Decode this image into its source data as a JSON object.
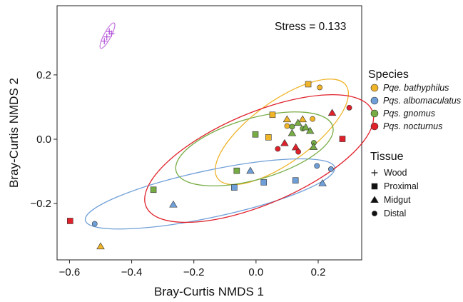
{
  "chart_data": {
    "type": "scatter",
    "xlabel": "Bray-Curtis NMDS 1",
    "ylabel": "Bray-Curtis NMDS 2",
    "annotation": "Stress = 0.133",
    "xlim": [
      -0.64,
      0.34
    ],
    "ylim": [
      -0.375,
      0.415
    ],
    "xticks": [
      -0.6,
      -0.4,
      -0.2,
      0.0,
      0.2
    ],
    "xtick_labels": [
      "−0.6",
      "−0.4",
      "−0.2",
      "0.0",
      "0.2"
    ],
    "yticks": [
      -0.2,
      0.0,
      0.2
    ],
    "ytick_labels": [
      "−0.2",
      "0.0",
      "0.2"
    ],
    "grid": false,
    "legend_position": "right",
    "species_legend_title": "Species",
    "tissue_legend_title": "Tissue",
    "species": [
      {
        "name": "Pqe. bathyphilus",
        "color": "#f0b429"
      },
      {
        "name": "Pqs. albomaculatus",
        "color": "#6f9fd8"
      },
      {
        "name": "Pqs. gnomus",
        "color": "#77ac44"
      },
      {
        "name": "Pqs. nocturnus",
        "color": "#e0202a"
      }
    ],
    "tissues": [
      {
        "name": "Wood",
        "shape": "plus"
      },
      {
        "name": "Proximal",
        "shape": "square"
      },
      {
        "name": "Midgut",
        "shape": "triangle"
      },
      {
        "name": "Distal",
        "shape": "circle"
      }
    ],
    "wood_color": "#b14fd8",
    "ellipses": [
      {
        "group": "Wood",
        "color": "#c77ee0",
        "cx": -0.478,
        "cy": 0.322,
        "a": 0.046,
        "b": 0.011,
        "angle_deg": 62
      },
      {
        "group": "Pqe. bathyphilus",
        "color": "#f0b429",
        "cx": 0.083,
        "cy": 0.023,
        "a": 0.255,
        "b": 0.095,
        "angle_deg": 36
      },
      {
        "group": "Pqs. albomaculatus",
        "color": "#6f9fd8",
        "cx": -0.148,
        "cy": -0.17,
        "a": 0.41,
        "b": 0.073,
        "angle_deg": 12
      },
      {
        "group": "Pqs. gnomus",
        "color": "#77ac44",
        "cx": -0.005,
        "cy": -0.03,
        "a": 0.262,
        "b": 0.095,
        "angle_deg": 16
      },
      {
        "group": "Pqs. nocturnus",
        "color": "#e0202a",
        "cx": 0.01,
        "cy": -0.06,
        "a": 0.395,
        "b": 0.142,
        "angle_deg": 23
      }
    ],
    "points": [
      {
        "species": "Wood",
        "tissue": "Wood",
        "x": -0.472,
        "y": 0.335
      },
      {
        "species": "Wood",
        "tissue": "Wood",
        "x": -0.465,
        "y": 0.328
      },
      {
        "species": "Wood",
        "tissue": "Wood",
        "x": -0.48,
        "y": 0.318
      },
      {
        "species": "Wood",
        "tissue": "Wood",
        "x": -0.488,
        "y": 0.305
      },
      {
        "species": "Pqe. bathyphilus",
        "tissue": "Proximal",
        "x": 0.168,
        "y": 0.171
      },
      {
        "species": "Pqe. bathyphilus",
        "tissue": "Distal",
        "x": 0.205,
        "y": 0.161
      },
      {
        "species": "Pqe. bathyphilus",
        "tissue": "Proximal",
        "x": 0.053,
        "y": 0.076
      },
      {
        "species": "Pqe. bathyphilus",
        "tissue": "Midgut",
        "x": 0.1,
        "y": 0.062
      },
      {
        "species": "Pqe. bathyphilus",
        "tissue": "Midgut",
        "x": 0.15,
        "y": 0.062
      },
      {
        "species": "Pqe. bathyphilus",
        "tissue": "Distal",
        "x": 0.182,
        "y": 0.063
      },
      {
        "species": "Pqe. bathyphilus",
        "tissue": "Distal",
        "x": 0.1,
        "y": 0.041
      },
      {
        "species": "Pqe. bathyphilus",
        "tissue": "Proximal",
        "x": 0.04,
        "y": 0.006
      },
      {
        "species": "Pqe. bathyphilus",
        "tissue": "Midgut",
        "x": -0.5,
        "y": -0.333
      },
      {
        "species": "Pqs. albomaculatus",
        "tissue": "Distal",
        "x": 0.196,
        "y": -0.083
      },
      {
        "species": "Pqs. albomaculatus",
        "tissue": "Distal",
        "x": 0.241,
        "y": -0.093
      },
      {
        "species": "Pqs. albomaculatus",
        "tissue": "Midgut",
        "x": -0.018,
        "y": -0.098
      },
      {
        "species": "Pqs. albomaculatus",
        "tissue": "Proximal",
        "x": 0.127,
        "y": -0.128
      },
      {
        "species": "Pqs. albomaculatus",
        "tissue": "Proximal",
        "x": 0.025,
        "y": -0.134
      },
      {
        "species": "Pqs. albomaculatus",
        "tissue": "Midgut",
        "x": 0.214,
        "y": -0.137
      },
      {
        "species": "Pqs. albomaculatus",
        "tissue": "Proximal",
        "x": -0.07,
        "y": -0.15
      },
      {
        "species": "Pqs. albomaculatus",
        "tissue": "Midgut",
        "x": -0.266,
        "y": -0.203
      },
      {
        "species": "Pqs. albomaculatus",
        "tissue": "Distal",
        "x": -0.519,
        "y": -0.263
      },
      {
        "species": "Pqs. gnomus",
        "tissue": "Midgut",
        "x": 0.135,
        "y": 0.051
      },
      {
        "species": "Pqs. gnomus",
        "tissue": "Distal",
        "x": 0.116,
        "y": 0.039
      },
      {
        "species": "Pqs. gnomus",
        "tissue": "Distal",
        "x": 0.15,
        "y": 0.033
      },
      {
        "species": "Pqs. gnomus",
        "tissue": "Midgut",
        "x": 0.16,
        "y": 0.037
      },
      {
        "species": "Pqs. gnomus",
        "tissue": "Midgut",
        "x": 0.174,
        "y": 0.026
      },
      {
        "species": "Pqs. gnomus",
        "tissue": "Midgut",
        "x": 0.116,
        "y": 0.019
      },
      {
        "species": "Pqs. gnomus",
        "tissue": "Proximal",
        "x": -0.002,
        "y": 0.015
      },
      {
        "species": "Pqs. gnomus",
        "tissue": "Distal",
        "x": 0.186,
        "y": -0.011
      },
      {
        "species": "Pqs. gnomus",
        "tissue": "Midgut",
        "x": 0.185,
        "y": -0.024
      },
      {
        "species": "Pqs. gnomus",
        "tissue": "Proximal",
        "x": -0.062,
        "y": -0.098
      },
      {
        "species": "Pqs. gnomus",
        "tissue": "Proximal",
        "x": -0.33,
        "y": -0.157
      },
      {
        "species": "Pqs. nocturnus",
        "tissue": "Distal",
        "x": 0.3,
        "y": 0.098
      },
      {
        "species": "Pqs. nocturnus",
        "tissue": "Midgut",
        "x": 0.245,
        "y": 0.082
      },
      {
        "species": "Pqs. nocturnus",
        "tissue": "Proximal",
        "x": 0.278,
        "y": 0.001
      },
      {
        "species": "Pqs. nocturnus",
        "tissue": "Midgut",
        "x": 0.092,
        "y": -0.012
      },
      {
        "species": "Pqs. nocturnus",
        "tissue": "Distal",
        "x": 0.07,
        "y": -0.03
      },
      {
        "species": "Pqs. nocturnus",
        "tissue": "Midgut",
        "x": 0.128,
        "y": -0.025
      },
      {
        "species": "Pqs. nocturnus",
        "tissue": "Distal",
        "x": 0.136,
        "y": -0.039
      },
      {
        "species": "Pqs. nocturnus",
        "tissue": "Proximal",
        "x": -0.598,
        "y": -0.254
      }
    ]
  }
}
